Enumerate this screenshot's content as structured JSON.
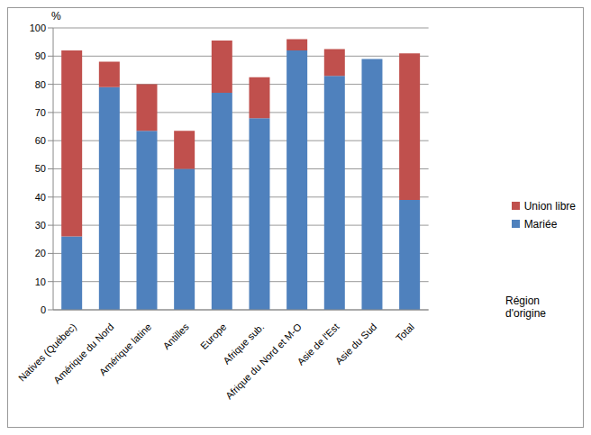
{
  "chart_data": {
    "type": "bar",
    "stacked": true,
    "ylabel": "%",
    "xlabel": "Région d'origine",
    "categories": [
      "Natives (Québec)",
      "Amérique du Nord",
      "Amérique latine",
      "Antilles",
      "Europe",
      "Afrique sub.",
      "Afrique du Nord et M-O",
      "Asie de l'Est",
      "Asie du Sud",
      "Total"
    ],
    "series": [
      {
        "name": "Mariée",
        "color": "#4f81bd",
        "values": [
          26,
          79,
          63.5,
          50,
          77,
          68,
          92,
          83,
          89,
          39
        ]
      },
      {
        "name": "Union libre",
        "color": "#c0504d",
        "values": [
          66,
          9,
          16.5,
          13.5,
          18.5,
          14.5,
          4,
          9.5,
          0,
          52
        ]
      }
    ],
    "ylim": [
      0,
      100
    ],
    "yticks": [
      0,
      10,
      20,
      30,
      40,
      50,
      60,
      70,
      80,
      90,
      100
    ],
    "grid": true,
    "legend": "right"
  }
}
